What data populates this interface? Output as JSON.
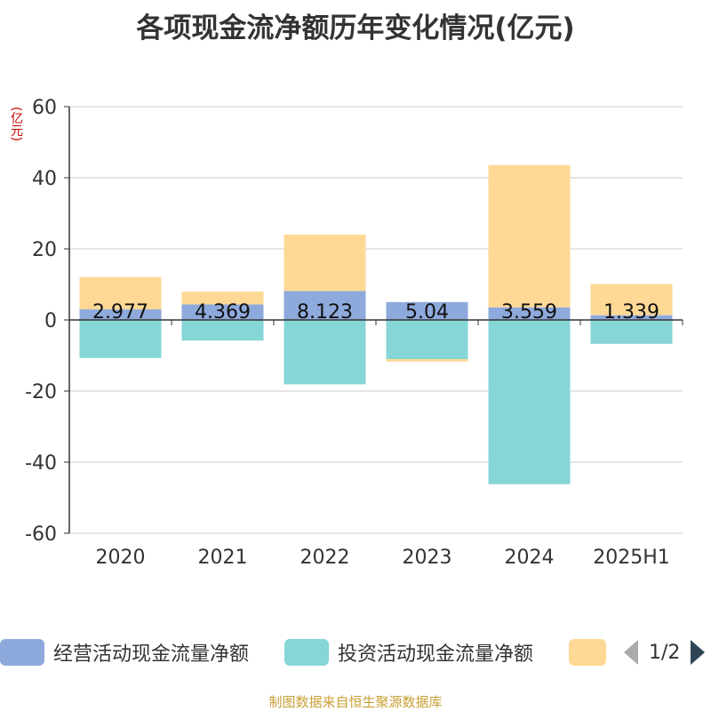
{
  "title": "各项现金流净额历年变化情况(亿元)",
  "unit_label": "(亿元)",
  "footer": "制图数据来自恒生聚源数据库",
  "legend": {
    "items": [
      {
        "label": "经营活动现金流量净额",
        "color": "#8eaadc"
      },
      {
        "label": "投资活动现金流量净额",
        "color": "#86d5d7"
      },
      {
        "label": "",
        "color": "#fed995"
      }
    ],
    "page": "1/2"
  },
  "chart_data": {
    "type": "bar",
    "stacked": true,
    "categories": [
      "2020",
      "2021",
      "2022",
      "2023",
      "2024",
      "2025H1"
    ],
    "ylim": [
      -60,
      60
    ],
    "yticks": [
      60,
      40,
      20,
      0,
      -20,
      -40,
      -60
    ],
    "grid": true,
    "legend_position": "bottom",
    "series": [
      {
        "name": "经营活动现金流量净额",
        "color": "#8eaadc",
        "values": [
          2.977,
          4.369,
          8.123,
          5.04,
          3.559,
          1.339
        ],
        "labels": [
          "2.977",
          "4.369",
          "8.123",
          "5.04",
          "3.559",
          "1.339"
        ]
      },
      {
        "name": "投资活动现金流量净额",
        "color": "#86d5d7",
        "values": [
          -10.7,
          -5.8,
          -18.1,
          -11.0,
          -46.2,
          -6.7
        ]
      },
      {
        "color": "#fed995",
        "values": [
          9.1,
          3.6,
          15.9,
          -0.7,
          40.0,
          8.8
        ]
      }
    ]
  }
}
